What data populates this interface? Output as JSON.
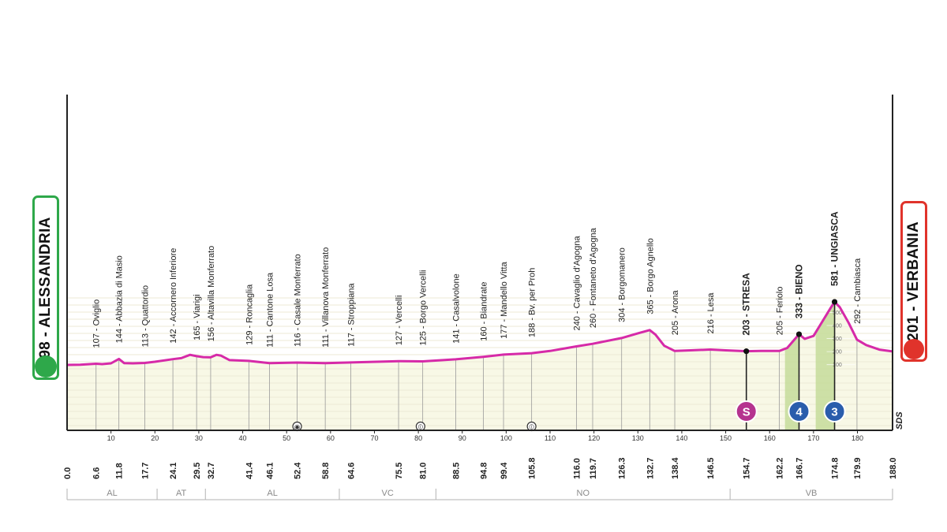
{
  "chart_data": {
    "type": "area",
    "start": {
      "altitude": "98",
      "name": "ALESSANDRIA",
      "color": "#2ea84a"
    },
    "finish": {
      "altitude": "201",
      "name": "VERBANIA",
      "color": "#e0332b"
    },
    "profile_color": "#d62aa8",
    "fill_color": "#f8f8e6",
    "climb_color": "#c5dc9a",
    "xlim": [
      0,
      188
    ],
    "ylim": [
      0,
      760
    ],
    "x_ticks": [
      10,
      20,
      30,
      40,
      50,
      60,
      70,
      80,
      90,
      100,
      110,
      120,
      130,
      140,
      150,
      160,
      170,
      180
    ],
    "profile": [
      [
        0,
        98
      ],
      [
        3,
        100
      ],
      [
        6.6,
        107
      ],
      [
        8,
        104
      ],
      [
        10,
        110
      ],
      [
        11.8,
        144
      ],
      [
        13,
        112
      ],
      [
        15,
        110
      ],
      [
        17.7,
        113
      ],
      [
        20,
        122
      ],
      [
        24.1,
        142
      ],
      [
        26,
        150
      ],
      [
        28,
        175
      ],
      [
        29.5,
        165
      ],
      [
        31,
        158
      ],
      [
        32.7,
        156
      ],
      [
        34,
        175
      ],
      [
        35,
        170
      ],
      [
        37,
        135
      ],
      [
        41.4,
        129
      ],
      [
        46.1,
        111
      ],
      [
        52.4,
        116
      ],
      [
        58.8,
        111
      ],
      [
        64.6,
        117
      ],
      [
        75.5,
        127
      ],
      [
        81,
        125
      ],
      [
        88.5,
        141
      ],
      [
        94.8,
        160
      ],
      [
        99.4,
        177
      ],
      [
        105.8,
        188
      ],
      [
        110,
        205
      ],
      [
        116,
        240
      ],
      [
        119.7,
        260
      ],
      [
        126.3,
        304
      ],
      [
        130,
        340
      ],
      [
        132.7,
        365
      ],
      [
        134,
        330
      ],
      [
        136,
        245
      ],
      [
        138.4,
        205
      ],
      [
        142,
        210
      ],
      [
        146.5,
        216
      ],
      [
        150,
        210
      ],
      [
        154.7,
        203
      ],
      [
        158,
        205
      ],
      [
        162.2,
        205
      ],
      [
        164,
        228
      ],
      [
        166.7,
        333
      ],
      [
        168,
        298
      ],
      [
        170,
        320
      ],
      [
        172,
        430
      ],
      [
        174,
        540
      ],
      [
        174.8,
        581
      ],
      [
        176,
        540
      ],
      [
        178,
        420
      ],
      [
        179.9,
        292
      ],
      [
        182,
        250
      ],
      [
        185,
        215
      ],
      [
        188,
        201
      ]
    ],
    "climb_zones": [
      [
        163.5,
        166.7
      ],
      [
        170.5,
        174.8
      ]
    ],
    "points": [
      {
        "km": "6.6",
        "alt": "107",
        "name": "Oviglio",
        "x": 6.6,
        "y": 107
      },
      {
        "km": "11.8",
        "alt": "144",
        "name": "Abbazia di Masio",
        "x": 11.8,
        "y": 144
      },
      {
        "km": "17.7",
        "alt": "113",
        "name": "Quattordio",
        "x": 17.7,
        "y": 113
      },
      {
        "km": "24.1",
        "alt": "142",
        "name": "Accornero Inferiore",
        "x": 24.1,
        "y": 142
      },
      {
        "km": "29.5",
        "alt": "165",
        "name": "Viarigi",
        "x": 29.5,
        "y": 165
      },
      {
        "km": "32.7",
        "alt": "156",
        "name": "Altavilla Monferrato",
        "x": 32.7,
        "y": 156
      },
      {
        "km": "41.4",
        "alt": "129",
        "name": "Roncaglia",
        "x": 41.4,
        "y": 129
      },
      {
        "km": "46.1",
        "alt": "111",
        "name": "Cantone Losa",
        "x": 46.1,
        "y": 111
      },
      {
        "km": "52.4",
        "alt": "116",
        "name": "Casale Monferrato",
        "x": 52.4,
        "y": 116
      },
      {
        "km": "58.8",
        "alt": "111",
        "name": "Villanova Monferrato",
        "x": 58.8,
        "y": 111
      },
      {
        "km": "64.6",
        "alt": "117",
        "name": "Stroppiana",
        "x": 64.6,
        "y": 117
      },
      {
        "km": "75.5",
        "alt": "127",
        "name": "Vercelli",
        "x": 75.5,
        "y": 127
      },
      {
        "km": "81.0",
        "alt": "125",
        "name": "Borgo Vercelli",
        "x": 81,
        "y": 125
      },
      {
        "km": "88.5",
        "alt": "141",
        "name": "Casalvolone",
        "x": 88.5,
        "y": 141
      },
      {
        "km": "94.8",
        "alt": "160",
        "name": "Biandrate",
        "x": 94.8,
        "y": 160
      },
      {
        "km": "99.4",
        "alt": "177",
        "name": "Mandello Vitta",
        "x": 99.4,
        "y": 177
      },
      {
        "km": "105.8",
        "alt": "188",
        "name": "Bv. per Proh",
        "x": 105.8,
        "y": 188
      },
      {
        "km": "116.0",
        "alt": "240",
        "name": "Cavaglio d'Agogna",
        "x": 116,
        "y": 240
      },
      {
        "km": "119.7",
        "alt": "260",
        "name": "Fontaneto d'Agogna",
        "x": 119.7,
        "y": 260
      },
      {
        "km": "126.3",
        "alt": "304",
        "name": "Borgomanero",
        "x": 126.3,
        "y": 304
      },
      {
        "km": "132.7",
        "alt": "365",
        "name": "Borgo Agnello",
        "x": 132.7,
        "y": 365
      },
      {
        "km": "138.4",
        "alt": "205",
        "name": "Arona",
        "x": 138.4,
        "y": 205
      },
      {
        "km": "146.5",
        "alt": "216",
        "name": "Lesa",
        "x": 146.5,
        "y": 216
      },
      {
        "km": "154.7",
        "alt": "203",
        "name": "STRESA",
        "x": 154.7,
        "y": 203,
        "bold": true
      },
      {
        "km": "162.2",
        "alt": "205",
        "name": "Feriolo",
        "x": 162.2,
        "y": 205
      },
      {
        "km": "166.7",
        "alt": "333",
        "name": "BIENO",
        "x": 166.7,
        "y": 333,
        "bold": true
      },
      {
        "km": "174.8",
        "alt": "581",
        "name": "UNGIASCA",
        "x": 174.8,
        "y": 581,
        "bold": true
      },
      {
        "km": "179.9",
        "alt": "292",
        "name": "Cambiasca",
        "x": 179.9,
        "y": 292
      }
    ],
    "special_markers": [
      {
        "label": "S",
        "km": 154.7,
        "color": "#b5338f",
        "kind": "sprint"
      },
      {
        "label": "4",
        "km": 166.7,
        "color": "#2a5dac",
        "kind": "climb"
      },
      {
        "label": "3",
        "km": 174.8,
        "color": "#2a5dac",
        "kind": "climb"
      }
    ],
    "feed_markers": [
      {
        "km": 52.4,
        "symbol": "◉"
      },
      {
        "km": 80.5,
        "symbol": "⦶"
      },
      {
        "km": 105.8,
        "symbol": "⦶"
      }
    ],
    "climb_grid_labels": [
      "500",
      "400",
      "300",
      "200",
      "100"
    ],
    "regions": [
      {
        "label": "AL",
        "from": 0,
        "to": 20.5
      },
      {
        "label": "AT",
        "from": 20.5,
        "to": 31.5
      },
      {
        "label": "AL",
        "from": 31.5,
        "to": 62
      },
      {
        "label": "VC",
        "from": 62,
        "to": 84
      },
      {
        "label": "NO",
        "from": 84,
        "to": 151
      },
      {
        "label": "VB",
        "from": 151,
        "to": 188
      }
    ],
    "start_km_label": "0.0",
    "finish_km_label": "188.0",
    "sds_label": "SDS"
  }
}
